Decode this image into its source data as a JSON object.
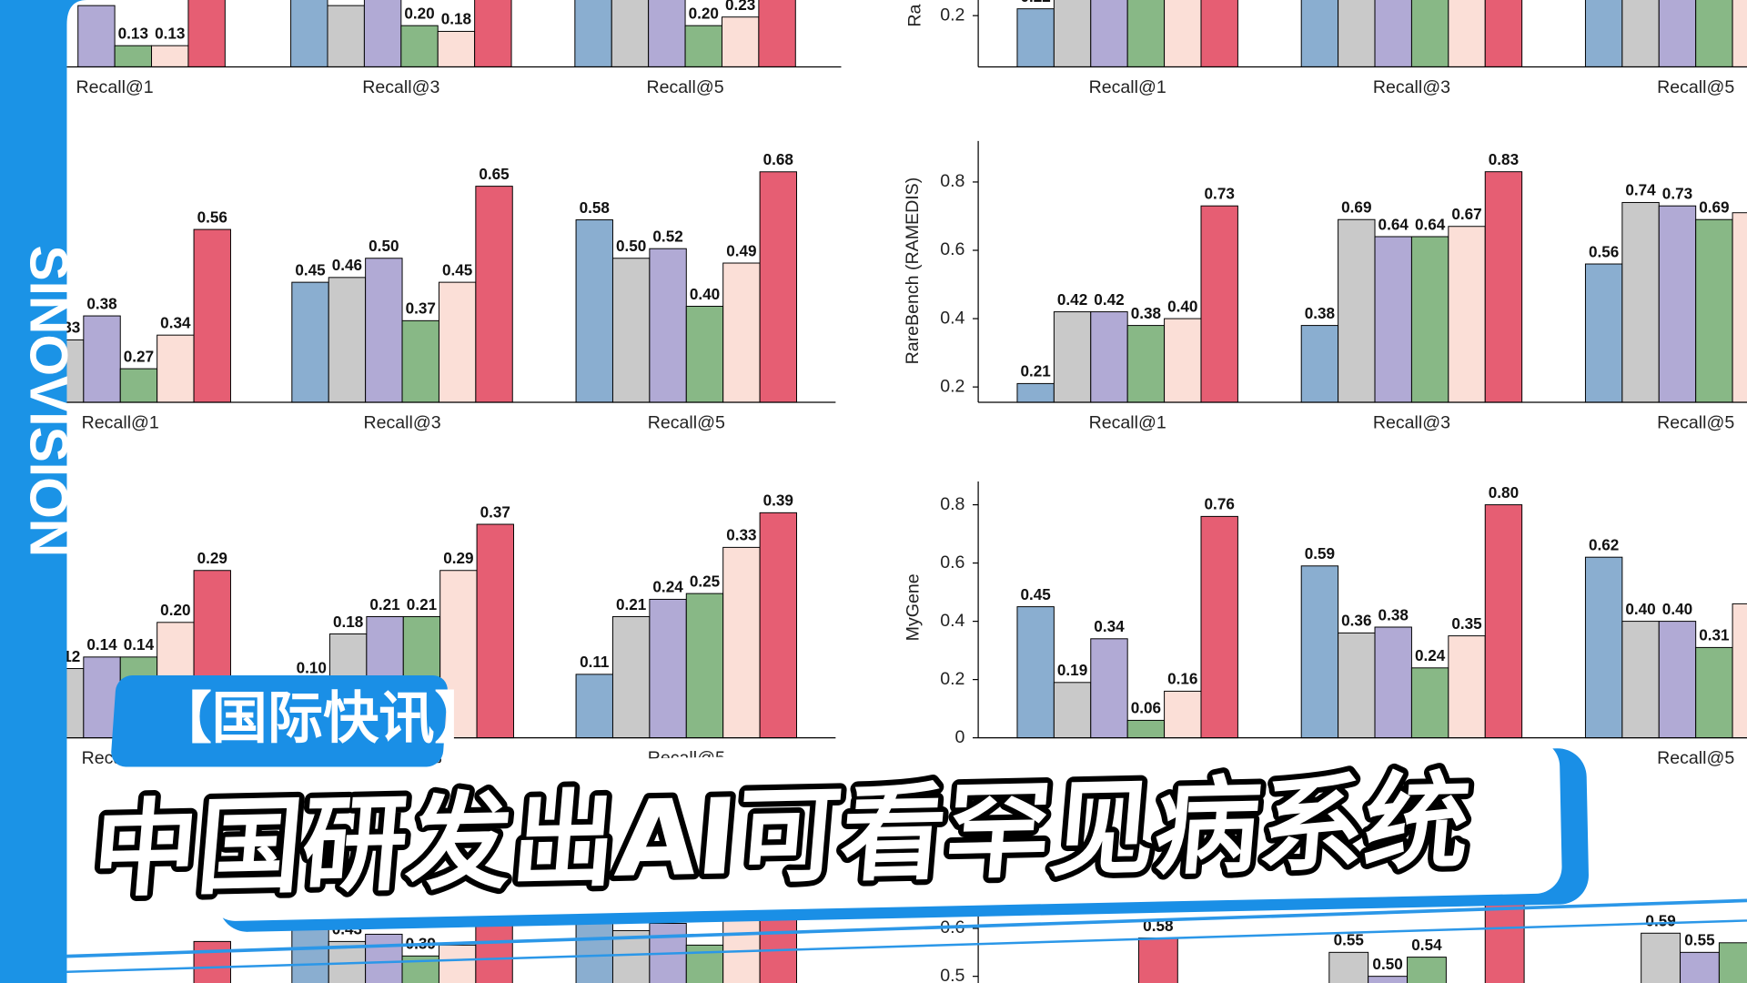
{
  "logo": "SINOVISION",
  "tag": "【国际快讯】",
  "headline": "中国研发出AI可看罕见病系统",
  "chart_data": [
    {
      "type": "bar",
      "categories": [
        "Recall@1",
        "Recall@3",
        "Recall@5"
      ],
      "ylim": [
        0.056,
        0.3
      ],
      "series": [
        {
          "color": "#8aaed0",
          "values": [
            null,
            0.3,
            0.3
          ],
          "value_labels": [
            null,
            null,
            null
          ]
        },
        {
          "color": "#c9c9c9",
          "values": [
            null,
            0.27,
            0.3
          ],
          "value_labels": [
            null,
            null,
            null
          ]
        },
        {
          "color": "#b1aad5",
          "values": [
            0.27,
            0.3,
            0.3
          ],
          "value_labels": [
            null,
            null,
            null
          ]
        },
        {
          "color": "#88b886",
          "values": [
            0.13,
            0.2,
            0.2
          ],
          "value_labels": [
            "0.13",
            "0.20",
            "0.20"
          ]
        },
        {
          "color": "#fbdfd7",
          "values": [
            0.13,
            0.18,
            0.23
          ],
          "value_labels": [
            "0.13",
            "0.18",
            "0.23"
          ]
        },
        {
          "color": "#e65e73",
          "values": [
            0.3,
            0.3,
            0.3
          ],
          "value_labels": [
            null,
            null,
            null
          ]
        }
      ]
    },
    {
      "type": "bar",
      "categories": [
        "Recall@1",
        "Recall@3",
        "Recall@5"
      ],
      "ylabel": "Ra",
      "ylim": [
        0.05,
        0.25
      ],
      "yticks": [
        0.2
      ],
      "series": [
        {
          "color": "#8aaed0",
          "values": [
            0.22,
            0.25,
            0.25
          ],
          "value_labels": [
            "0.22",
            null,
            null
          ]
        },
        {
          "color": "#c9c9c9",
          "values": [
            0.25,
            0.25,
            0.25
          ],
          "value_labels": [
            null,
            null,
            null
          ]
        },
        {
          "color": "#b1aad5",
          "values": [
            0.25,
            0.25,
            0.25
          ],
          "value_labels": [
            null,
            null,
            null
          ]
        },
        {
          "color": "#88b886",
          "values": [
            0.25,
            0.25,
            0.25
          ],
          "value_labels": [
            null,
            null,
            null
          ]
        },
        {
          "color": "#fbdfd7",
          "values": [
            0.25,
            0.25,
            0.25
          ],
          "value_labels": [
            null,
            null,
            null
          ]
        },
        {
          "color": "#e65e73",
          "values": [
            0.25,
            0.25,
            null
          ],
          "value_labels": [
            null,
            null,
            null
          ]
        }
      ]
    },
    {
      "type": "bar",
      "categories": [
        "Recall@1",
        "Recall@3",
        "Recall@5"
      ],
      "ylim": [
        0.2,
        0.75
      ],
      "series": [
        {
          "color": "#8aaed0",
          "values": [
            null,
            0.45,
            0.58
          ],
          "value_labels": [
            null,
            "0.45",
            "0.58"
          ]
        },
        {
          "color": "#c9c9c9",
          "values": [
            0.33,
            0.46,
            0.5
          ],
          "value_labels": [
            "0.33",
            "0.46",
            "0.50"
          ]
        },
        {
          "color": "#b1aad5",
          "values": [
            0.38,
            0.5,
            0.52
          ],
          "value_labels": [
            "0.38",
            "0.50",
            "0.52"
          ]
        },
        {
          "color": "#88b886",
          "values": [
            0.27,
            0.37,
            0.4
          ],
          "value_labels": [
            "0.27",
            "0.37",
            "0.40"
          ]
        },
        {
          "color": "#fbdfd7",
          "values": [
            0.34,
            0.45,
            0.49
          ],
          "value_labels": [
            "0.34",
            "0.45",
            "0.49"
          ]
        },
        {
          "color": "#e65e73",
          "values": [
            0.56,
            0.65,
            0.68
          ],
          "value_labels": [
            "0.56",
            "0.65",
            "0.68"
          ]
        }
      ]
    },
    {
      "type": "bar",
      "categories": [
        "Recall@1",
        "Recall@3",
        "Recall@5"
      ],
      "ylabel": "RareBench (RAMEDIS)",
      "ylim": [
        0.155,
        0.92
      ],
      "yticks": [
        0.2,
        0.4,
        0.6,
        0.8
      ],
      "series": [
        {
          "color": "#8aaed0",
          "values": [
            0.21,
            0.38,
            0.56
          ],
          "value_labels": [
            "0.21",
            "0.38",
            "0.56"
          ]
        },
        {
          "color": "#c9c9c9",
          "values": [
            0.42,
            0.69,
            0.74
          ],
          "value_labels": [
            "0.42",
            "0.69",
            "0.74"
          ]
        },
        {
          "color": "#b1aad5",
          "values": [
            0.42,
            0.64,
            0.73
          ],
          "value_labels": [
            "0.42",
            "0.64",
            "0.73"
          ]
        },
        {
          "color": "#88b886",
          "values": [
            0.38,
            0.64,
            0.69
          ],
          "value_labels": [
            "0.38",
            "0.64",
            "0.69"
          ]
        },
        {
          "color": "#fbdfd7",
          "values": [
            0.4,
            0.67,
            0.71
          ],
          "value_labels": [
            "0.40",
            "0.67",
            null
          ]
        },
        {
          "color": "#e65e73",
          "values": [
            0.73,
            0.83,
            null
          ],
          "value_labels": [
            "0.73",
            "0.83",
            null
          ]
        }
      ]
    },
    {
      "type": "bar",
      "categories": [
        "Recall@1",
        "Recall@3",
        "Recall@5"
      ],
      "ylim": [
        0,
        0.45
      ],
      "series": [
        {
          "color": "#8aaed0",
          "values": [
            null,
            0.1,
            0.11
          ],
          "value_labels": [
            null,
            "0.10",
            "0.11"
          ]
        },
        {
          "color": "#c9c9c9",
          "values": [
            0.12,
            0.18,
            0.21
          ],
          "value_labels": [
            "0.12",
            "0.18",
            "0.21"
          ]
        },
        {
          "color": "#b1aad5",
          "values": [
            0.14,
            0.21,
            0.24
          ],
          "value_labels": [
            "0.14",
            "0.21",
            "0.24"
          ]
        },
        {
          "color": "#88b886",
          "values": [
            0.14,
            0.21,
            0.25
          ],
          "value_labels": [
            "0.14",
            "0.21",
            "0.25"
          ]
        },
        {
          "color": "#fbdfd7",
          "values": [
            0.2,
            0.29,
            0.33
          ],
          "value_labels": [
            "0.20",
            "0.29",
            "0.33"
          ]
        },
        {
          "color": "#e65e73",
          "values": [
            0.29,
            0.37,
            0.39
          ],
          "value_labels": [
            "0.29",
            "0.37",
            "0.39"
          ]
        }
      ]
    },
    {
      "type": "bar",
      "categories": [
        "Recall@1",
        "Recall@3",
        "Recall@5"
      ],
      "ylabel": "MyGene",
      "ylim": [
        0,
        0.88
      ],
      "yticks": [
        0,
        0.2,
        0.4,
        0.6,
        0.8
      ],
      "series": [
        {
          "color": "#8aaed0",
          "values": [
            0.45,
            0.59,
            0.62
          ],
          "value_labels": [
            "0.45",
            "0.59",
            "0.62"
          ]
        },
        {
          "color": "#c9c9c9",
          "values": [
            0.19,
            0.36,
            0.4
          ],
          "value_labels": [
            "0.19",
            "0.36",
            "0.40"
          ]
        },
        {
          "color": "#b1aad5",
          "values": [
            0.34,
            0.38,
            0.4
          ],
          "value_labels": [
            "0.34",
            "0.38",
            "0.40"
          ]
        },
        {
          "color": "#88b886",
          "values": [
            0.06,
            0.24,
            0.31
          ],
          "value_labels": [
            "0.06",
            "0.24",
            "0.31"
          ]
        },
        {
          "color": "#fbdfd7",
          "values": [
            0.16,
            0.35,
            0.46
          ],
          "value_labels": [
            "0.16",
            "0.35",
            null
          ]
        },
        {
          "color": "#e65e73",
          "values": [
            0.76,
            0.8,
            null
          ],
          "value_labels": [
            "0.76",
            "0.80",
            null
          ]
        }
      ]
    },
    {
      "type": "bar",
      "ylim": [
        0.3,
        0.58
      ],
      "series": [
        {
          "color": "#8aaed0",
          "values": [
            null,
            0.5,
            0.5
          ],
          "value_labels": [
            null,
            null,
            null
          ]
        },
        {
          "color": "#c9c9c9",
          "values": [
            null,
            0.43,
            0.46
          ],
          "value_labels": [
            null,
            "0.43",
            "0.46"
          ]
        },
        {
          "color": "#b1aad5",
          "values": [
            null,
            0.45,
            0.48
          ],
          "value_labels": [
            null,
            "0.45",
            null
          ]
        },
        {
          "color": "#88b886",
          "values": [
            null,
            0.39,
            0.42
          ],
          "value_labels": [
            null,
            "0.39",
            null
          ]
        },
        {
          "color": "#fbdfd7",
          "values": [
            null,
            0.42,
            0.58
          ],
          "value_labels": [
            null,
            null,
            null
          ]
        },
        {
          "color": "#e65e73",
          "values": [
            0.43,
            0.58,
            0.58
          ],
          "value_labels": [
            null,
            null,
            null
          ]
        }
      ]
    },
    {
      "type": "bar",
      "ylim": [
        0.45,
        0.7
      ],
      "yticks": [
        0.5,
        0.6
      ],
      "series": [
        {
          "color": "#8aaed0",
          "values": [
            null,
            null,
            null
          ],
          "value_labels": [
            null,
            null,
            null
          ]
        },
        {
          "color": "#c9c9c9",
          "values": [
            null,
            0.55,
            0.59
          ],
          "value_labels": [
            null,
            "0.55",
            "0.59"
          ]
        },
        {
          "color": "#b1aad5",
          "values": [
            null,
            0.5,
            0.55
          ],
          "value_labels": [
            null,
            "0.50",
            "0.55"
          ]
        },
        {
          "color": "#88b886",
          "values": [
            null,
            0.54,
            0.57
          ],
          "value_labels": [
            null,
            "0.54",
            null
          ]
        },
        {
          "color": "#fbdfd7",
          "values": [
            null,
            null,
            null
          ],
          "value_labels": [
            null,
            null,
            null
          ]
        },
        {
          "color": "#e65e73",
          "values": [
            0.58,
            0.7,
            null
          ],
          "value_labels": [
            "0.58",
            null,
            null
          ]
        }
      ]
    }
  ]
}
